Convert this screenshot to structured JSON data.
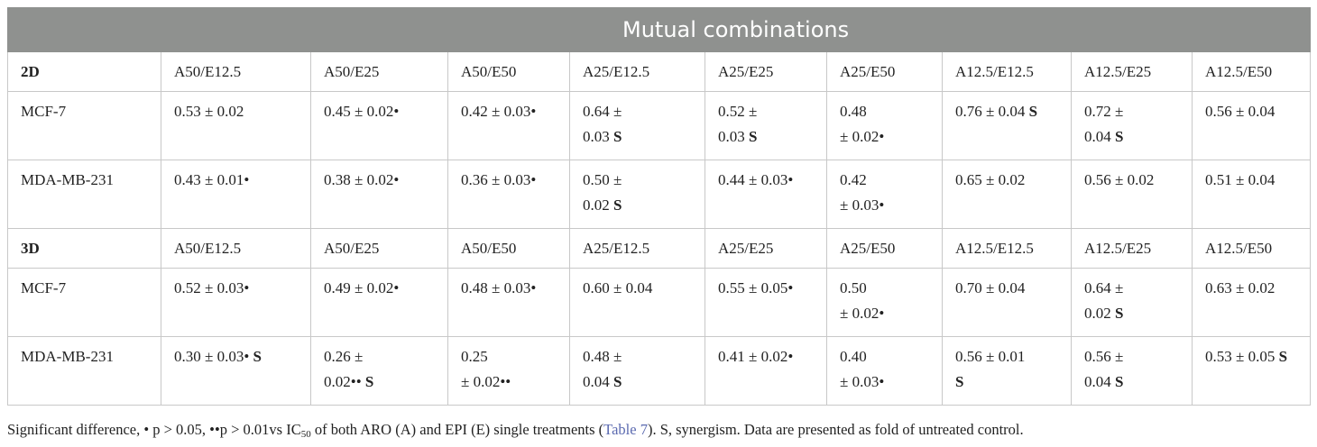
{
  "header": {
    "group_title": "Mutual combinations"
  },
  "sections": [
    {
      "label": "2D",
      "columns": [
        "A50/E12.5",
        "A50/E25",
        "A50/E50",
        "A25/E12.5",
        "A25/E25",
        "A25/E50",
        "A12.5/E12.5",
        "A12.5/E25",
        "A12.5/E50"
      ],
      "rows": [
        {
          "label": "MCF-7",
          "cells": [
            [
              {
                "t": "0.53 ± 0.02"
              }
            ],
            [
              {
                "t": "0.45 ± 0.02•"
              }
            ],
            [
              {
                "t": "0.42 ± 0.03•"
              }
            ],
            [
              {
                "t": "0.64 ±"
              },
              {
                "t": "0.03 "
              },
              {
                "t": "S",
                "b": true
              }
            ],
            [
              {
                "t": "0.52 ±"
              },
              {
                "t": "0.03 "
              },
              {
                "t": "S",
                "b": true
              }
            ],
            [
              {
                "t": "0.48"
              },
              {
                "t": "± 0.02•"
              }
            ],
            [
              {
                "t": "0.76 ± 0.04 "
              },
              {
                "t": "S",
                "b": true
              }
            ],
            [
              {
                "t": "0.72 ±"
              },
              {
                "t": "0.04 "
              },
              {
                "t": "S",
                "b": true
              }
            ],
            [
              {
                "t": "0.56 ± 0.04"
              }
            ]
          ]
        },
        {
          "label": "MDA-MB-231",
          "cells": [
            [
              {
                "t": "0.43 ± 0.01•"
              }
            ],
            [
              {
                "t": "0.38 ± 0.02•"
              }
            ],
            [
              {
                "t": "0.36 ± 0.03•"
              }
            ],
            [
              {
                "t": "0.50 ±"
              },
              {
                "t": "0.02 "
              },
              {
                "t": "S",
                "b": true
              }
            ],
            [
              {
                "t": "0.44 ± 0.03•"
              }
            ],
            [
              {
                "t": "0.42"
              },
              {
                "t": "± 0.03•"
              }
            ],
            [
              {
                "t": "0.65 ± 0.02"
              }
            ],
            [
              {
                "t": "0.56 ± 0.02"
              }
            ],
            [
              {
                "t": "0.51 ± 0.04"
              }
            ]
          ]
        }
      ]
    },
    {
      "label": "3D",
      "columns": [
        "A50/E12.5",
        "A50/E25",
        "A50/E50",
        "A25/E12.5",
        "A25/E25",
        "A25/E50",
        "A12.5/E12.5",
        "A12.5/E25",
        "A12.5/E50"
      ],
      "rows": [
        {
          "label": "MCF-7",
          "cells": [
            [
              {
                "t": "0.52 ± 0.03•"
              }
            ],
            [
              {
                "t": "0.49 ± 0.02•"
              }
            ],
            [
              {
                "t": "0.48 ± 0.03•"
              }
            ],
            [
              {
                "t": "0.60 ± 0.04"
              }
            ],
            [
              {
                "t": "0.55 ± 0.05•"
              }
            ],
            [
              {
                "t": "0.50"
              },
              {
                "t": "± 0.02•"
              }
            ],
            [
              {
                "t": "0.70 ± 0.04"
              }
            ],
            [
              {
                "t": "0.64 ±"
              },
              {
                "t": "0.02 "
              },
              {
                "t": "S",
                "b": true
              }
            ],
            [
              {
                "t": "0.63 ± 0.02"
              }
            ]
          ]
        },
        {
          "label": "MDA-MB-231",
          "cells": [
            [
              {
                "t": "0.30 ± 0.03• "
              },
              {
                "t": "S",
                "b": true
              }
            ],
            [
              {
                "t": "0.26 ±"
              },
              {
                "t": "0.02•• "
              },
              {
                "t": "S",
                "b": true
              }
            ],
            [
              {
                "t": "0.25"
              },
              {
                "t": "± 0.02••"
              }
            ],
            [
              {
                "t": "0.48 ±"
              },
              {
                "t": "0.04 "
              },
              {
                "t": "S",
                "b": true
              }
            ],
            [
              {
                "t": "0.41 ± 0.02•"
              }
            ],
            [
              {
                "t": "0.40"
              },
              {
                "t": "± 0.03•"
              }
            ],
            [
              {
                "t": "0.56 ± 0.01"
              },
              {
                "t": "S",
                "b": true
              }
            ],
            [
              {
                "t": "0.56 ±"
              },
              {
                "t": "0.04 "
              },
              {
                "t": "S",
                "b": true
              }
            ],
            [
              {
                "t": "0.53 ± 0.05 "
              },
              {
                "t": "S",
                "b": true
              }
            ]
          ]
        }
      ]
    }
  ],
  "footnote": {
    "part1": "Significant difference, • p > 0.05, ••p > 0.01vs IC",
    "sub": "50",
    "part2": " of both ARO (A) and EPI (E) single treatments (",
    "link": "Table 7",
    "part3": "). S, synergism. Data are presented as fold of untreated control."
  }
}
